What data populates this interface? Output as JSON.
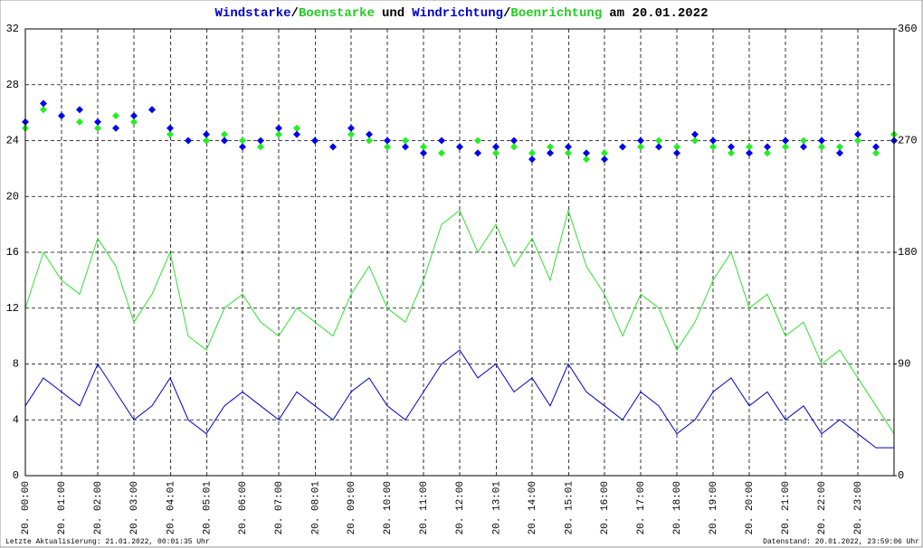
{
  "chart_data": {
    "type": "line",
    "title_parts": [
      {
        "text": "Windstarke",
        "color": "#0000cc"
      },
      {
        "text": "/",
        "color": "#000000"
      },
      {
        "text": "Boenstarke",
        "color": "#22cc22"
      },
      {
        "text": "und",
        "color": "#000000"
      },
      {
        "text": "Windrichtung",
        "color": "#0000cc"
      },
      {
        "text": "/",
        "color": "#000000"
      },
      {
        "text": "Boenrichtung",
        "color": "#22cc22"
      },
      {
        "text": "am 20.01.2022",
        "color": "#000000"
      }
    ],
    "footer_left": "Letzte Aktualisierung: 21.01.2022, 00:01:35 Uhr",
    "footer_right": "Datenstand: 20.01.2022, 23:59:06 Uhr",
    "x": [
      0,
      0.5,
      1,
      1.5,
      2,
      2.5,
      3,
      3.5,
      4,
      4.5,
      5,
      5.5,
      6,
      6.5,
      7,
      7.5,
      8,
      8.5,
      9,
      9.5,
      10,
      10.5,
      11,
      11.5,
      12,
      12.5,
      13,
      13.5,
      14,
      14.5,
      15,
      15.5,
      16,
      16.5,
      17,
      17.5,
      18,
      18.5,
      19,
      19.5,
      20,
      20.5,
      21,
      21.5,
      22,
      22.5,
      23,
      23.5,
      24
    ],
    "xlim": [
      0,
      24
    ],
    "xticks": [
      {
        "value": 0,
        "label": "20. 00:00"
      },
      {
        "value": 1,
        "label": "20. 01:00"
      },
      {
        "value": 2,
        "label": "20. 02:00"
      },
      {
        "value": 3,
        "label": "20. 03:00"
      },
      {
        "value": 4.0167,
        "label": "20. 04:01"
      },
      {
        "value": 5.0167,
        "label": "20. 05:01"
      },
      {
        "value": 6,
        "label": "20. 06:00"
      },
      {
        "value": 7,
        "label": "20. 07:00"
      },
      {
        "value": 8.0167,
        "label": "20. 08:01"
      },
      {
        "value": 9,
        "label": "20. 09:00"
      },
      {
        "value": 10,
        "label": "20. 10:00"
      },
      {
        "value": 11,
        "label": "20. 11:00"
      },
      {
        "value": 12,
        "label": "20. 12:00"
      },
      {
        "value": 13.0167,
        "label": "20. 13:01"
      },
      {
        "value": 14,
        "label": "20. 14:00"
      },
      {
        "value": 15.0167,
        "label": "20. 15:01"
      },
      {
        "value": 16,
        "label": "20. 16:00"
      },
      {
        "value": 17,
        "label": "20. 17:00"
      },
      {
        "value": 18,
        "label": "20. 18:00"
      },
      {
        "value": 19,
        "label": "20. 19:00"
      },
      {
        "value": 20,
        "label": "20. 20:00"
      },
      {
        "value": 21,
        "label": "20. 21:00"
      },
      {
        "value": 22,
        "label": "20. 22:00"
      },
      {
        "value": 23,
        "label": "20. 23:00"
      }
    ],
    "ylim": [
      0,
      32
    ],
    "yticks": [
      0,
      4,
      8,
      12,
      16,
      20,
      24,
      28,
      32
    ],
    "y2lim": [
      0,
      360
    ],
    "y2ticks": [
      0,
      90,
      180,
      270,
      360
    ],
    "grid": true,
    "series": [
      {
        "name": "Boenstarke",
        "type": "line",
        "color": "#33dd33",
        "values": [
          12,
          16,
          14,
          13,
          17,
          15,
          11,
          13,
          16,
          10,
          9,
          12,
          13,
          11,
          10,
          12,
          11,
          10,
          13,
          15,
          12,
          11,
          14,
          18,
          19,
          16,
          18,
          15,
          17,
          14,
          19,
          15,
          13,
          10,
          13,
          12,
          9,
          11,
          14,
          16,
          12,
          13,
          10,
          11,
          8,
          9,
          7,
          5,
          3
        ]
      },
      {
        "name": "Windstarke",
        "type": "line",
        "color": "#0000cc",
        "values": [
          5,
          7,
          6,
          5,
          8,
          6,
          4,
          5,
          7,
          4,
          3,
          5,
          6,
          5,
          4,
          6,
          5,
          4,
          6,
          7,
          5,
          4,
          6,
          8,
          9,
          7,
          8,
          6,
          7,
          5,
          8,
          6,
          5,
          4,
          6,
          5,
          3,
          4,
          6,
          7,
          5,
          6,
          4,
          5,
          3,
          4,
          3,
          2,
          2
        ]
      },
      {
        "name": "Boenrichtung",
        "type": "scatter",
        "axis": "y2",
        "color": "#22ee22",
        "values": [
          280,
          295,
          290,
          285,
          280,
          290,
          285,
          295,
          275,
          270,
          270,
          275,
          270,
          265,
          275,
          280,
          270,
          265,
          275,
          270,
          265,
          270,
          265,
          260,
          265,
          270,
          260,
          265,
          260,
          265,
          260,
          255,
          260,
          265,
          265,
          270,
          265,
          270,
          265,
          260,
          265,
          260,
          265,
          270,
          265,
          265,
          270,
          260,
          275
        ]
      },
      {
        "name": "Windrichtung",
        "type": "scatter",
        "axis": "y2",
        "color": "#0000ee",
        "values": [
          285,
          300,
          290,
          295,
          285,
          280,
          290,
          295,
          280,
          270,
          275,
          270,
          265,
          270,
          280,
          275,
          270,
          265,
          280,
          275,
          270,
          265,
          260,
          270,
          265,
          260,
          265,
          270,
          255,
          260,
          265,
          260,
          255,
          265,
          270,
          265,
          260,
          275,
          270,
          265,
          260,
          265,
          270,
          265,
          270,
          260,
          275,
          265,
          270
        ]
      }
    ]
  }
}
